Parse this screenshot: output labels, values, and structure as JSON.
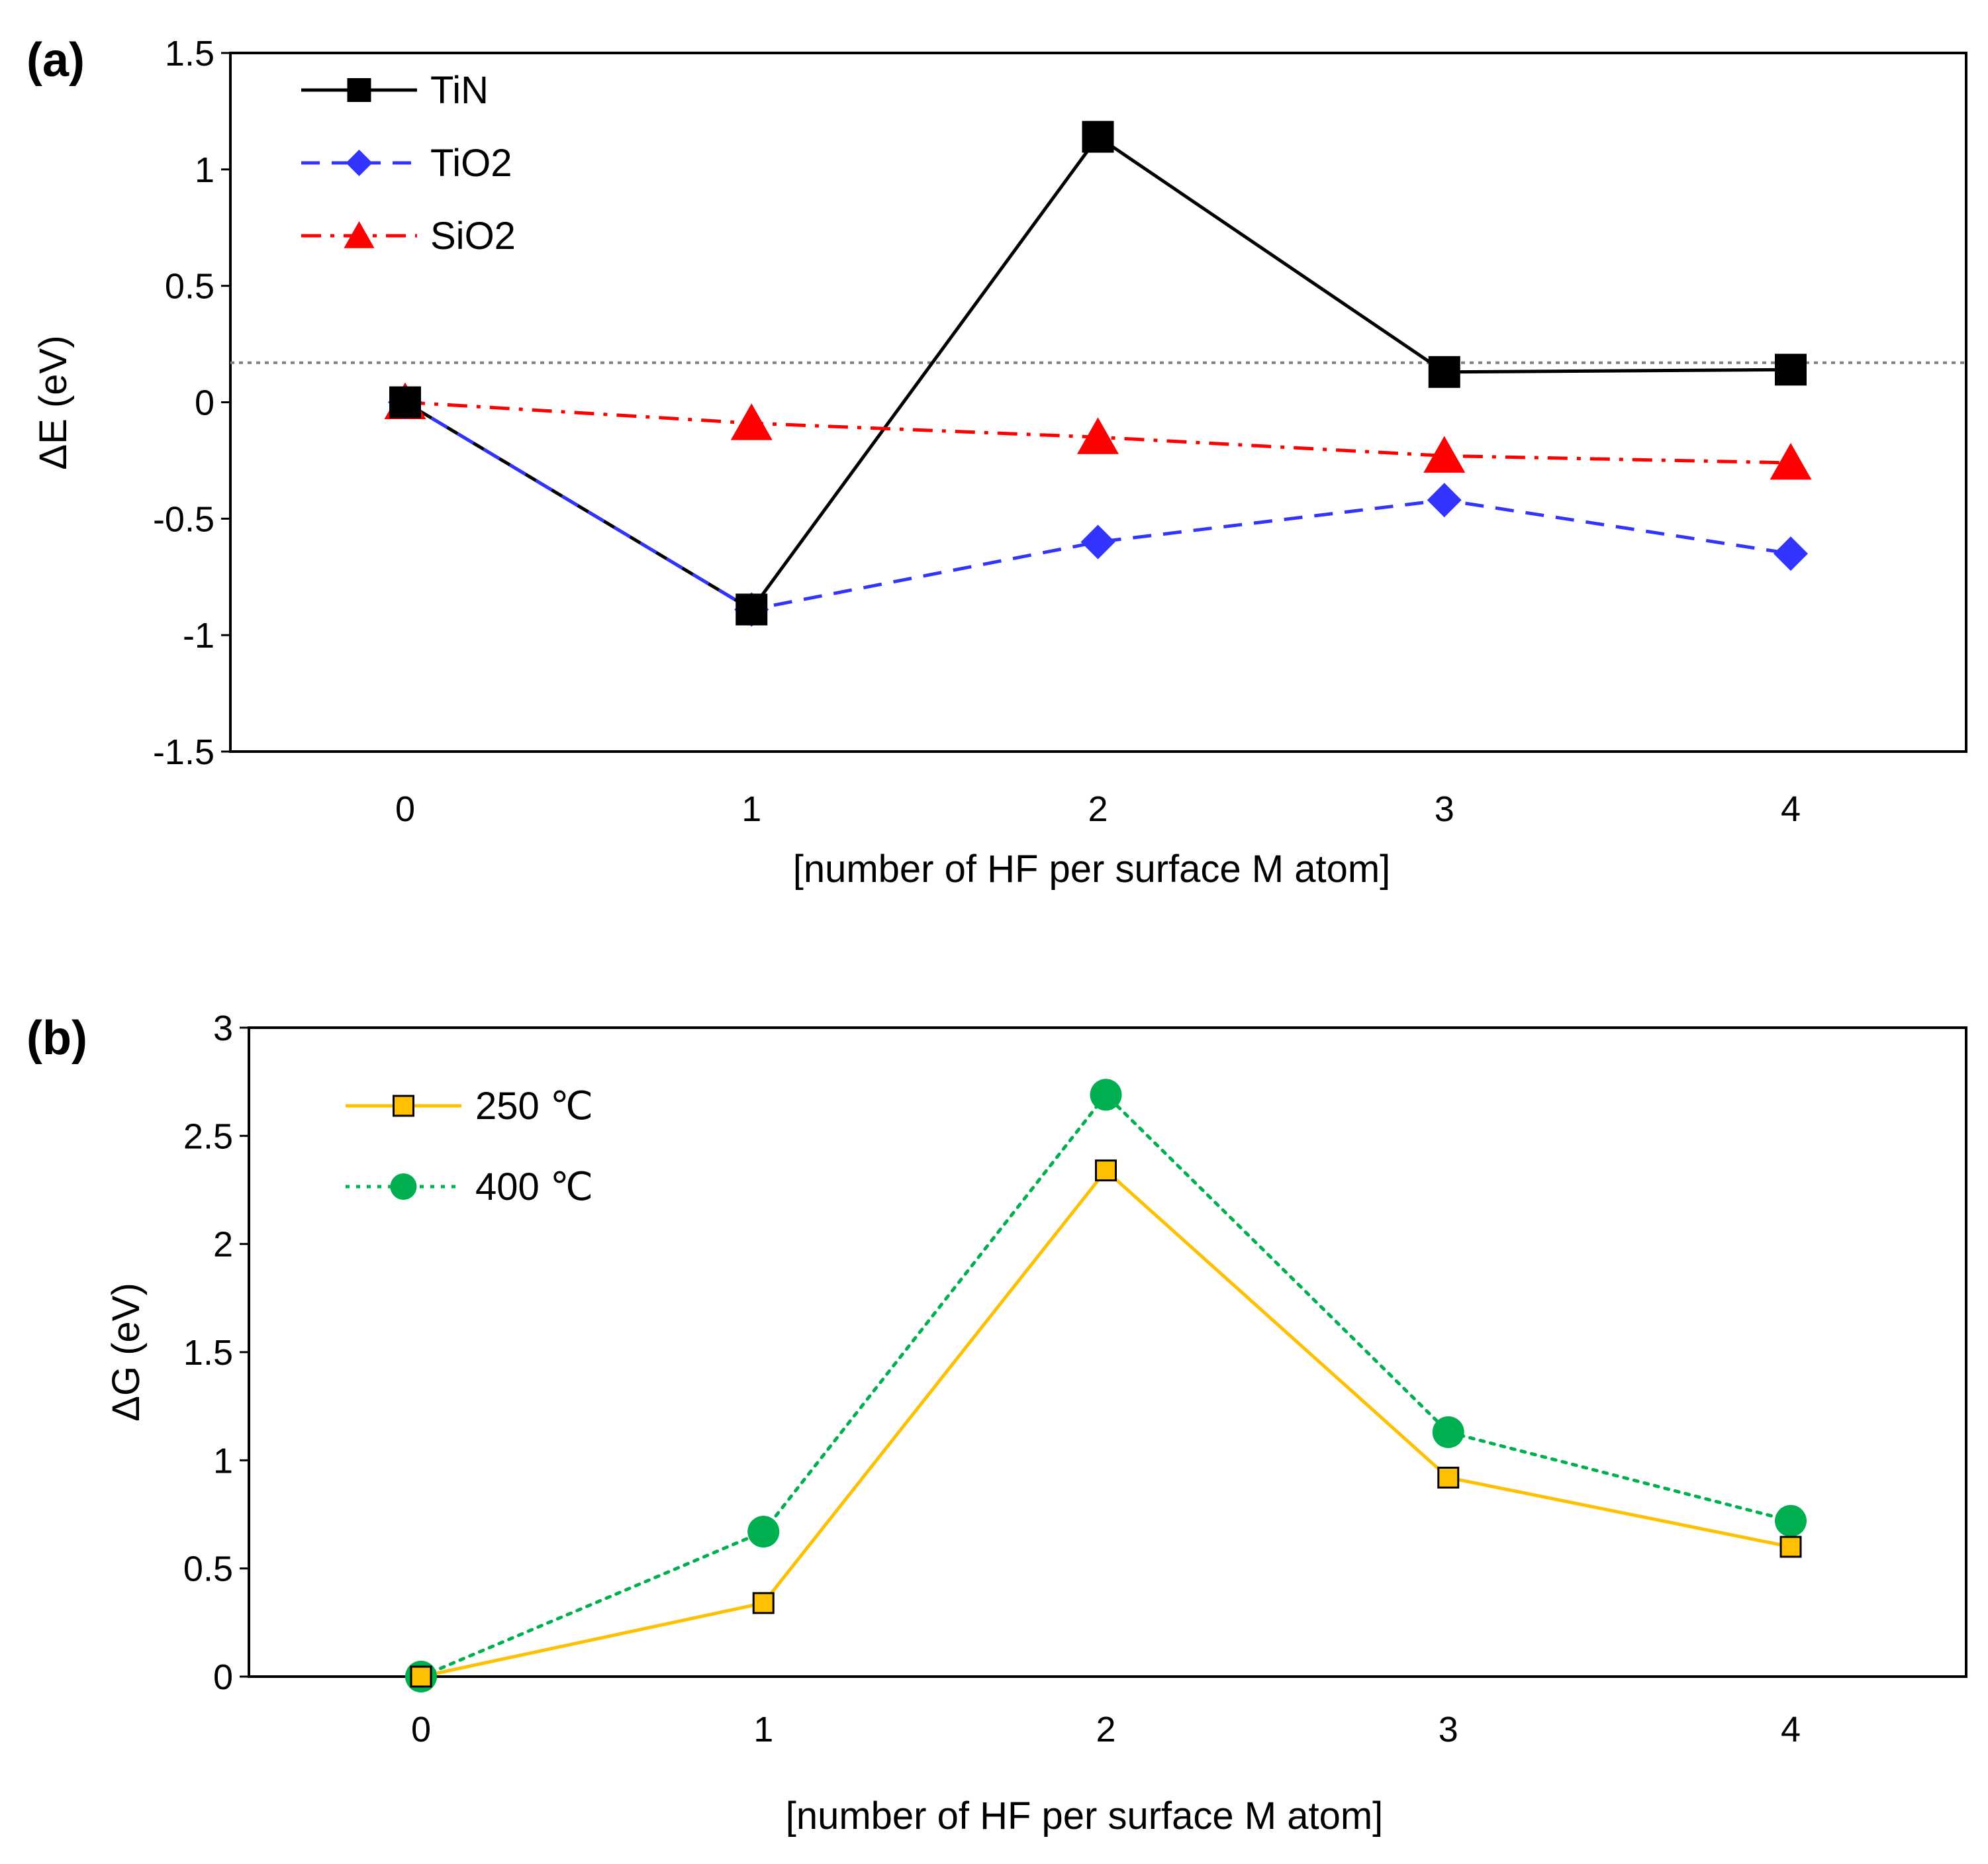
{
  "chart_data": [
    {
      "panel_label": "(a)",
      "type": "line",
      "xlabel": "[number of HF per surface M atom]",
      "ylabel": "ΔE (eV)",
      "x": [
        0,
        1,
        2,
        3,
        4
      ],
      "xlim": [
        -0.5,
        4.5
      ],
      "ylim": [
        -1.5,
        1.5
      ],
      "yticks": [
        -1.5,
        -1,
        -0.5,
        0,
        0.5,
        1,
        1.5
      ],
      "ytick_labels": [
        "-1.5",
        "-1",
        "-0.5",
        "0",
        "0.5",
        "1",
        "1.5"
      ],
      "xtick_labels": [
        "0",
        "1",
        "2",
        "3",
        "4"
      ],
      "reference_line": 0.17,
      "legend_position": "top-left",
      "series": [
        {
          "name": "TiN",
          "values": [
            0.0,
            -0.89,
            1.14,
            0.13,
            0.14
          ],
          "color": "#000000",
          "marker": "square",
          "dash": "solid"
        },
        {
          "name": "TiO2",
          "values": [
            0.0,
            -0.89,
            -0.6,
            -0.42,
            -0.65
          ],
          "color": "#3333ff",
          "marker": "diamond",
          "dash": "dashed"
        },
        {
          "name": "SiO2",
          "values": [
            0.0,
            -0.09,
            -0.15,
            -0.23,
            -0.26
          ],
          "color": "#ff0000",
          "marker": "triangle",
          "dash": "dash-dot"
        }
      ]
    },
    {
      "panel_label": "(b)",
      "type": "line",
      "xlabel": "[number of HF per surface M atom]",
      "ylabel": "ΔG (eV)",
      "x": [
        0,
        1,
        2,
        3,
        4
      ],
      "xlim": [
        -0.5,
        4.5
      ],
      "ylim": [
        0,
        3
      ],
      "yticks": [
        0,
        0.5,
        1,
        1.5,
        2,
        2.5,
        3
      ],
      "ytick_labels": [
        "0",
        "0.5",
        "1",
        "1.5",
        "2",
        "2.5",
        "3"
      ],
      "xtick_labels": [
        "0",
        "1",
        "2",
        "3",
        "4"
      ],
      "legend_position": "top-left",
      "series": [
        {
          "name": "250 ℃",
          "values": [
            0.0,
            0.34,
            2.34,
            0.92,
            0.6
          ],
          "color": "#ffc000",
          "marker": "square-open",
          "dash": "solid"
        },
        {
          "name": "400 ℃",
          "values": [
            0.0,
            0.67,
            2.69,
            1.13,
            0.72
          ],
          "color": "#00b050",
          "marker": "circle",
          "dash": "dotted"
        }
      ]
    }
  ]
}
